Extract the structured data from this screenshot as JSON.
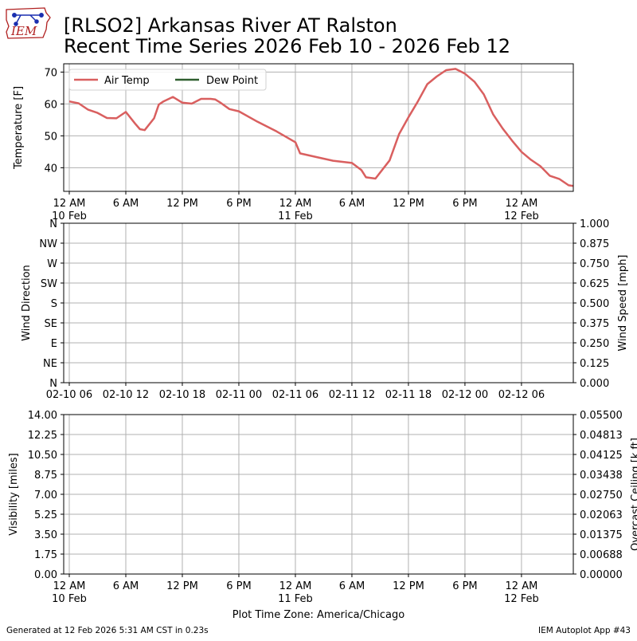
{
  "header": {
    "title_line1": "[RLSO2] Arkansas River  AT Ralston",
    "title_line2": "Recent Time Series 2026 Feb 10 - 2026 Feb 12",
    "logo_text": "IEM"
  },
  "footer": {
    "generated": "Generated at 12 Feb 2026 5:31 AM CST in 0.23s",
    "app": "IEM Autoplot App #43",
    "timezone": "Plot Time Zone: America/Chicago"
  },
  "colors": {
    "air_temp": "#d95f5f",
    "dew_point": "#2e5e2e",
    "ceiling_label": "#008000"
  },
  "chart_data": [
    {
      "type": "line",
      "ylabel": "Temperature [F]",
      "ylim": [
        32.6,
        72.6
      ],
      "yticks": [
        "40",
        "50",
        "60",
        "70"
      ],
      "xticks": [
        {
          "line1": "12 AM",
          "line2": "10 Feb"
        },
        {
          "line1": "6 AM",
          "line2": ""
        },
        {
          "line1": "12 PM",
          "line2": ""
        },
        {
          "line1": "6 PM",
          "line2": ""
        },
        {
          "line1": "12 AM",
          "line2": "11 Feb"
        },
        {
          "line1": "6 AM",
          "line2": ""
        },
        {
          "line1": "12 PM",
          "line2": ""
        },
        {
          "line1": "6 PM",
          "line2": ""
        },
        {
          "line1": "12 AM",
          "line2": "12 Feb"
        }
      ],
      "legend": "upper-left",
      "series": [
        {
          "name": "Air Temp",
          "x": [
            "2026-02-10 00:00",
            "2026-02-10 01:00",
            "2026-02-10 02:00",
            "2026-02-10 03:00",
            "2026-02-10 04:00",
            "2026-02-10 05:00",
            "2026-02-10 06:00",
            "2026-02-10 07:00",
            "2026-02-10 07:30",
            "2026-02-10 08:00",
            "2026-02-10 09:00",
            "2026-02-10 09:30",
            "2026-02-10 10:00",
            "2026-02-10 11:00",
            "2026-02-10 12:00",
            "2026-02-10 13:00",
            "2026-02-10 14:00",
            "2026-02-10 15:00",
            "2026-02-10 15:30",
            "2026-02-10 16:00",
            "2026-02-10 17:00",
            "2026-02-10 18:00",
            "2026-02-10 20:00",
            "2026-02-10 22:00",
            "2026-02-11 00:00",
            "2026-02-11 00:30",
            "2026-02-11 02:00",
            "2026-02-11 04:00",
            "2026-02-11 06:00",
            "2026-02-11 07:00",
            "2026-02-11 07:30",
            "2026-02-11 08:30",
            "2026-02-11 10:00",
            "2026-02-11 11:00",
            "2026-02-11 12:00",
            "2026-02-11 13:00",
            "2026-02-11 14:00",
            "2026-02-11 15:00",
            "2026-02-11 16:00",
            "2026-02-11 17:00",
            "2026-02-11 17:40",
            "2026-02-11 18:00",
            "2026-02-11 19:00",
            "2026-02-11 20:00",
            "2026-02-11 21:00",
            "2026-02-11 22:00",
            "2026-02-11 23:00",
            "2026-02-12 00:00",
            "2026-02-12 01:00",
            "2026-02-12 02:00",
            "2026-02-12 03:00",
            "2026-02-12 04:00",
            "2026-02-12 05:00",
            "2026-02-12 05:30"
          ],
          "values": [
            60.8,
            60.2,
            58.2,
            57.2,
            55.6,
            55.5,
            57.5,
            53.8,
            52.1,
            51.8,
            55.5,
            59.8,
            60.8,
            62.2,
            60.4,
            60.1,
            61.6,
            61.6,
            61.4,
            60.5,
            58.4,
            57.7,
            54.4,
            51.4,
            48.0,
            44.5,
            43.5,
            42.2,
            41.5,
            39.3,
            37.0,
            36.6,
            42.3,
            50.5,
            55.8,
            60.8,
            66.2,
            68.6,
            70.6,
            71.0,
            70.0,
            69.5,
            67.0,
            63.0,
            56.7,
            52.3,
            48.5,
            45.0,
            42.5,
            40.5,
            37.5,
            36.5,
            34.5,
            34.3
          ]
        },
        {
          "name": "Dew Point",
          "x": [],
          "values": []
        }
      ]
    },
    {
      "type": "line",
      "ylabel": "Wind Direction",
      "y2label": "Wind Speed [mph]",
      "yticks": [
        "N",
        "NW",
        "W",
        "SW",
        "S",
        "SE",
        "E",
        "NE",
        "N"
      ],
      "y2ticks": [
        "1.000",
        "0.875",
        "0.750",
        "0.625",
        "0.500",
        "0.375",
        "0.250",
        "0.125",
        "0.000"
      ],
      "y2lim": [
        0,
        1
      ],
      "xticks": [
        "02-10 06",
        "02-10 12",
        "02-10 18",
        "02-11 00",
        "02-11 06",
        "02-11 12",
        "02-11 18",
        "02-12 00",
        "02-12 06"
      ],
      "series": []
    },
    {
      "type": "line",
      "ylabel": "Visibility [miles]",
      "y2label": "Overcast Ceiling [k ft]",
      "ylim": [
        0,
        14
      ],
      "y2lim": [
        0,
        0.055
      ],
      "yticks": [
        "14.00",
        "12.25",
        "10.50",
        "8.75",
        "7.00",
        "5.25",
        "3.50",
        "1.75",
        "0.00"
      ],
      "y2ticks": [
        "0.05500",
        "0.04813",
        "0.04125",
        "0.03438",
        "0.02750",
        "0.02063",
        "0.01375",
        "0.00688",
        "0.00000"
      ],
      "xticks": [
        {
          "line1": "12 AM",
          "line2": "10 Feb"
        },
        {
          "line1": "6 AM",
          "line2": ""
        },
        {
          "line1": "12 PM",
          "line2": ""
        },
        {
          "line1": "6 PM",
          "line2": ""
        },
        {
          "line1": "12 AM",
          "line2": "11 Feb"
        },
        {
          "line1": "6 AM",
          "line2": ""
        },
        {
          "line1": "12 PM",
          "line2": ""
        },
        {
          "line1": "6 PM",
          "line2": ""
        },
        {
          "line1": "12 AM",
          "line2": "12 Feb"
        }
      ],
      "series": []
    }
  ]
}
